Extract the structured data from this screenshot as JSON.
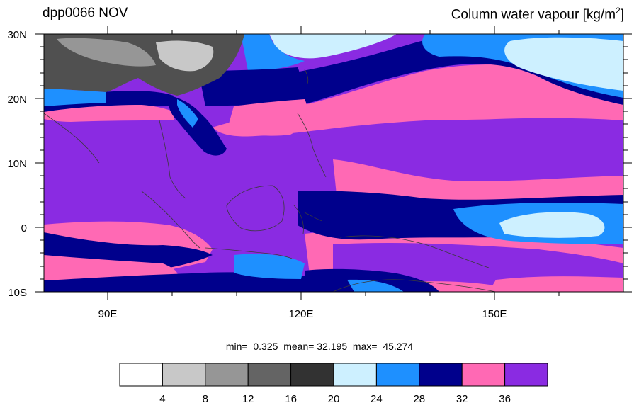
{
  "title_left": "dpp0066 NOV",
  "title_right_main": "Column water vapour [kg/m",
  "title_right_sup": "2",
  "title_right_close": "]",
  "lat_labels": [
    "30N",
    "20N",
    "10N",
    "0",
    "10S"
  ],
  "lon_labels": [
    "90E",
    "120E",
    "150E"
  ],
  "stats": {
    "min_label": "min=",
    "min": "0.325",
    "mean_label": "mean=",
    "mean": "32.195",
    "max_label": "max=",
    "max": "45.274"
  },
  "colorbar": {
    "colors": [
      "#ffffff",
      "#c8c8c8",
      "#969696",
      "#646464",
      "#323232",
      "#cdf0ff",
      "#1e90ff",
      "#00008c",
      "#ff69b4",
      "#8a2be2"
    ],
    "tick_labels": [
      "4",
      "8",
      "12",
      "16",
      "20",
      "24",
      "28",
      "32",
      "36"
    ]
  },
  "map_colors": {
    "purple": "#8a2be2",
    "pink": "#ff69b4",
    "navy": "#00008c",
    "blue": "#1e90ff",
    "lightblue": "#cdf0ff",
    "darkgray": "#505050",
    "gray": "#969696",
    "coast": "#3a3a3a"
  }
}
